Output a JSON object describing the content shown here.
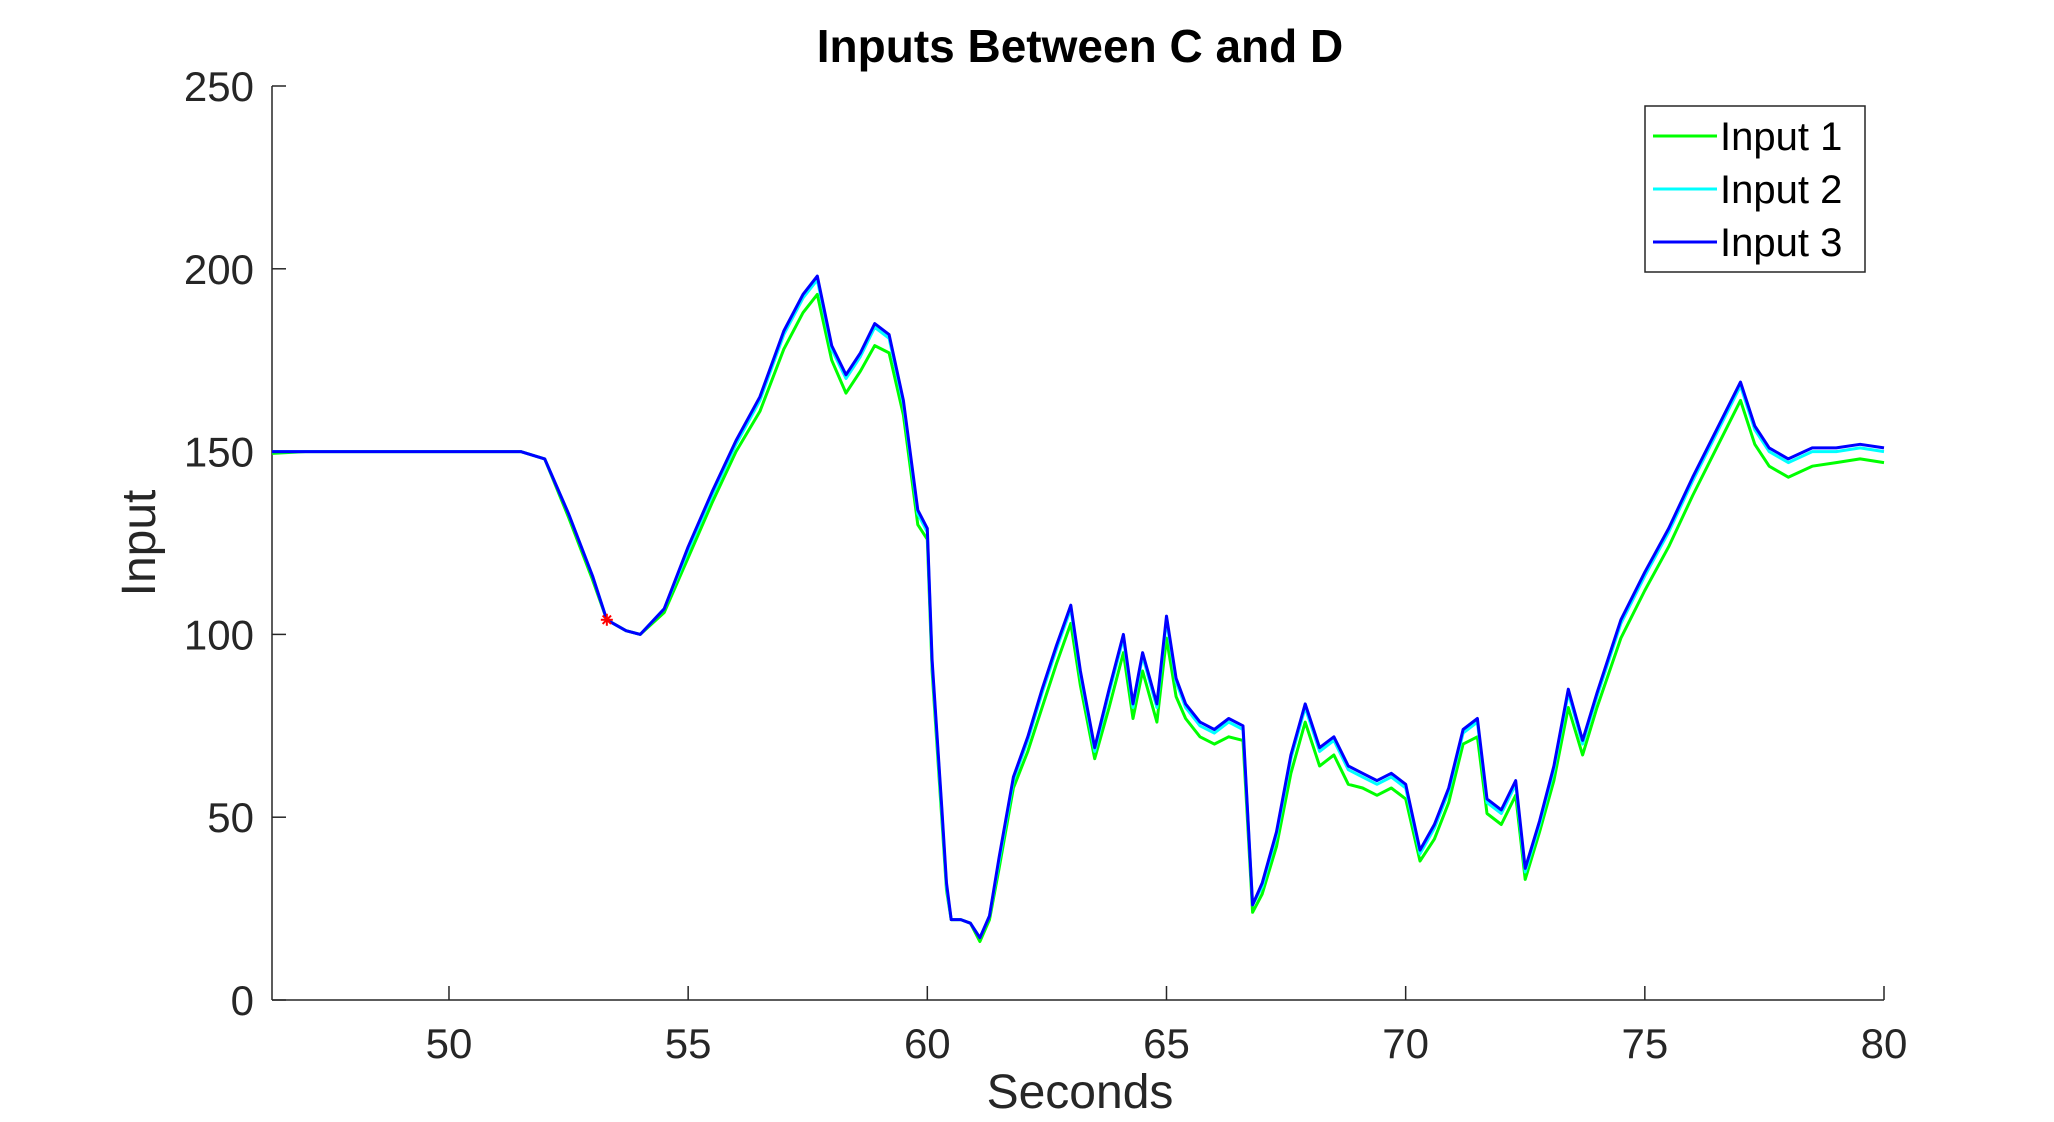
{
  "chart_data": {
    "type": "line",
    "title": "Inputs Between C and D",
    "xlabel": "Seconds",
    "ylabel": "Input",
    "xlim": [
      46.3,
      80
    ],
    "ylim": [
      0,
      250
    ],
    "xticks": [
      50,
      55,
      60,
      65,
      70,
      75,
      80
    ],
    "yticks": [
      0,
      50,
      100,
      150,
      200,
      250
    ],
    "grid": false,
    "legend_position": "top-right",
    "x": [
      46.3,
      47,
      48,
      49,
      50,
      51,
      51.5,
      52,
      52.5,
      53,
      53.3,
      53.7,
      54,
      54.5,
      55,
      55.5,
      56,
      56.5,
      57,
      57.4,
      57.7,
      58,
      58.3,
      58.6,
      58.9,
      59.2,
      59.5,
      59.8,
      60,
      60.1,
      60.2,
      60.3,
      60.4,
      60.5,
      60.7,
      60.9,
      61.1,
      61.3,
      61.5,
      61.8,
      62.1,
      62.4,
      62.7,
      63.0,
      63.2,
      63.5,
      63.8,
      64.1,
      64.3,
      64.5,
      64.8,
      65.0,
      65.2,
      65.4,
      65.7,
      66.0,
      66.3,
      66.6,
      66.8,
      67.0,
      67.3,
      67.6,
      67.9,
      68.2,
      68.5,
      68.8,
      69.1,
      69.4,
      69.7,
      70.0,
      70.3,
      70.6,
      70.9,
      71.2,
      71.5,
      71.7,
      72.0,
      72.3,
      72.5,
      72.8,
      73.1,
      73.4,
      73.7,
      74.0,
      74.5,
      75.0,
      75.5,
      76.0,
      76.5,
      77.0,
      77.3,
      77.6,
      78.0,
      78.5,
      79.0,
      79.5,
      80.0
    ],
    "series": [
      {
        "name": "Input 1",
        "color": "#00ff00",
        "values": [
          149.5,
          150,
          150,
          150,
          150,
          150,
          150,
          148,
          132,
          115,
          104,
          101,
          100,
          106,
          121,
          136,
          150,
          161,
          178,
          188,
          193,
          175,
          166,
          172,
          179,
          177,
          160,
          130,
          126,
          90,
          70,
          50,
          30,
          22,
          22,
          21,
          16,
          22,
          36,
          58,
          68,
          80,
          92,
          103,
          86,
          66,
          80,
          95,
          77,
          90,
          76,
          99,
          83,
          77,
          72,
          70,
          72,
          71,
          24,
          29,
          42,
          62,
          76,
          64,
          67,
          59,
          58,
          56,
          58,
          55,
          38,
          44,
          54,
          70,
          72,
          51,
          48,
          56,
          33,
          46,
          60,
          80,
          67,
          80,
          99,
          112,
          124,
          138,
          151,
          164,
          152,
          146,
          143,
          146,
          147,
          148,
          147
        ]
      },
      {
        "name": "Input 2",
        "color": "#00ffff",
        "values": [
          150,
          150,
          150,
          150,
          150,
          150,
          150,
          148,
          133,
          116,
          104,
          101,
          100,
          107,
          123,
          138,
          152,
          164,
          182,
          192,
          197,
          178,
          170,
          176,
          184,
          181,
          163,
          133,
          128,
          92,
          72,
          52,
          31,
          22,
          22,
          21,
          17,
          23,
          38,
          60,
          71,
          84,
          96,
          107,
          89,
          68,
          84,
          99,
          80,
          94,
          80,
          104,
          87,
          80,
          75,
          73,
          76,
          74,
          26,
          31,
          45,
          66,
          80,
          68,
          71,
          63,
          61,
          59,
          61,
          58,
          40,
          47,
          57,
          73,
          76,
          54,
          51,
          59,
          35,
          48,
          63,
          84,
          70,
          83,
          103,
          116,
          128,
          142,
          155,
          168,
          156,
          150,
          147,
          150,
          150,
          151,
          150
        ]
      },
      {
        "name": "Input 3",
        "color": "#0000ff",
        "values": [
          150,
          150,
          150,
          150,
          150,
          150,
          150,
          148,
          133,
          116,
          104,
          101,
          100,
          107,
          124,
          139,
          153,
          165,
          183,
          193,
          198,
          179,
          171,
          177,
          185,
          182,
          164,
          134,
          129,
          93,
          73,
          53,
          32,
          22,
          22,
          21,
          17,
          23,
          39,
          61,
          72,
          85,
          97,
          108,
          90,
          69,
          85,
          100,
          81,
          95,
          81,
          105,
          88,
          81,
          76,
          74,
          77,
          75,
          26,
          32,
          46,
          67,
          81,
          69,
          72,
          64,
          62,
          60,
          62,
          59,
          41,
          48,
          58,
          74,
          77,
          55,
          52,
          60,
          36,
          49,
          64,
          85,
          71,
          84,
          104,
          117,
          129,
          143,
          156,
          169,
          157,
          151,
          148,
          151,
          151,
          152,
          151
        ]
      }
    ],
    "markers": [
      {
        "x": 53.3,
        "y": 104,
        "symbol": "*",
        "color": "#ff0000"
      }
    ]
  }
}
